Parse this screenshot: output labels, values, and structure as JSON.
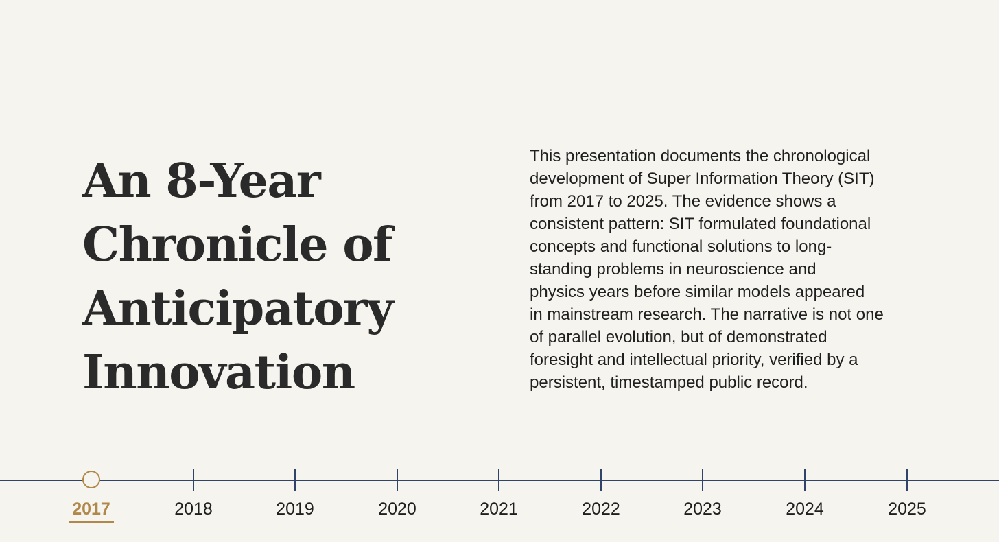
{
  "title": {
    "lines": [
      "An 8-Year",
      "Chronicle of",
      "Anticipatory",
      "Innovation"
    ]
  },
  "description": {
    "lines": [
      "This presentation documents the chronological",
      "development of Super Information Theory (SIT)",
      "from 2017 to 2025. The evidence shows a",
      "consistent pattern: SIT formulated foundational",
      "concepts and functional solutions to long-",
      "standing problems in neuroscience and",
      "physics years before similar models appeared",
      "in mainstream research. The narrative is not one",
      "of parallel evolution, but of demonstrated",
      "foresight and intellectual priority, verified by a",
      "persistent, timestamped public record."
    ]
  },
  "timeline": {
    "active_year": "2017",
    "years": [
      "2017",
      "2018",
      "2019",
      "2020",
      "2021",
      "2022",
      "2023",
      "2024",
      "2025"
    ]
  },
  "colors": {
    "background": "#f6f4ef",
    "axis": "#2f4468",
    "accent": "#b0894a",
    "text": "#1f1f1f",
    "title": "#2a2a2a"
  }
}
